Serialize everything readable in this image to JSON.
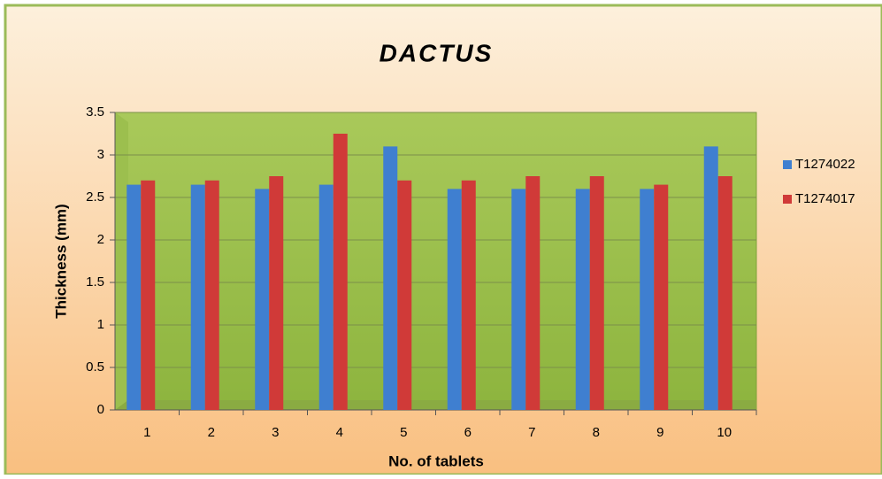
{
  "chart_data": {
    "type": "bar",
    "title": "DACTUS",
    "x_label": "No. of tablets",
    "y_label": "Thickness (mm)",
    "categories": [
      "1",
      "2",
      "3",
      "4",
      "5",
      "6",
      "7",
      "8",
      "9",
      "10"
    ],
    "series": [
      {
        "name": "T1274022",
        "color": "#3f7fd0",
        "values": [
          2.65,
          2.65,
          2.6,
          2.65,
          3.1,
          2.6,
          2.6,
          2.6,
          2.6,
          3.1
        ]
      },
      {
        "name": "T1274017",
        "color": "#d03a38",
        "values": [
          2.7,
          2.7,
          2.75,
          3.25,
          2.7,
          2.7,
          2.75,
          2.75,
          2.65,
          2.75
        ]
      }
    ],
    "ylim": [
      0,
      3.5
    ],
    "yticks": [
      0,
      0.5,
      1,
      1.5,
      2,
      2.5,
      3,
      3.5
    ],
    "grid": true,
    "legend": "right"
  }
}
